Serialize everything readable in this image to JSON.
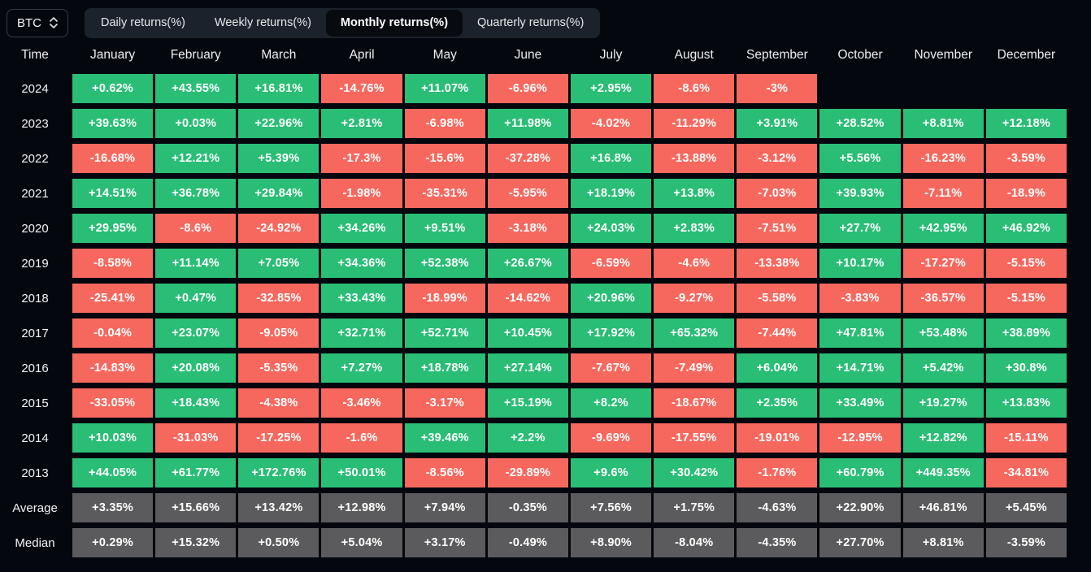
{
  "controls": {
    "symbol_selector": {
      "value": "BTC"
    },
    "tabs": [
      {
        "label": "Daily returns(%)",
        "active": false
      },
      {
        "label": "Weekly returns(%)",
        "active": false
      },
      {
        "label": "Monthly returns(%)",
        "active": true
      },
      {
        "label": "Quarterly returns(%)",
        "active": false
      }
    ]
  },
  "table": {
    "time_header": "Time",
    "months": [
      "January",
      "February",
      "March",
      "April",
      "May",
      "June",
      "July",
      "August",
      "September",
      "October",
      "November",
      "December"
    ],
    "rows": [
      {
        "label": "2024",
        "type": "year",
        "values": [
          "+0.62%",
          "+43.55%",
          "+16.81%",
          "-14.76%",
          "+11.07%",
          "-6.96%",
          "+2.95%",
          "-8.6%",
          "-3%",
          "",
          "",
          ""
        ]
      },
      {
        "label": "2023",
        "type": "year",
        "values": [
          "+39.63%",
          "+0.03%",
          "+22.96%",
          "+2.81%",
          "-6.98%",
          "+11.98%",
          "-4.02%",
          "-11.29%",
          "+3.91%",
          "+28.52%",
          "+8.81%",
          "+12.18%"
        ]
      },
      {
        "label": "2022",
        "type": "year",
        "values": [
          "-16.68%",
          "+12.21%",
          "+5.39%",
          "-17.3%",
          "-15.6%",
          "-37.28%",
          "+16.8%",
          "-13.88%",
          "-3.12%",
          "+5.56%",
          "-16.23%",
          "-3.59%"
        ]
      },
      {
        "label": "2021",
        "type": "year",
        "values": [
          "+14.51%",
          "+36.78%",
          "+29.84%",
          "-1.98%",
          "-35.31%",
          "-5.95%",
          "+18.19%",
          "+13.8%",
          "-7.03%",
          "+39.93%",
          "-7.11%",
          "-18.9%"
        ]
      },
      {
        "label": "2020",
        "type": "year",
        "values": [
          "+29.95%",
          "-8.6%",
          "-24.92%",
          "+34.26%",
          "+9.51%",
          "-3.18%",
          "+24.03%",
          "+2.83%",
          "-7.51%",
          "+27.7%",
          "+42.95%",
          "+46.92%"
        ]
      },
      {
        "label": "2019",
        "type": "year",
        "values": [
          "-8.58%",
          "+11.14%",
          "+7.05%",
          "+34.36%",
          "+52.38%",
          "+26.67%",
          "-6.59%",
          "-4.6%",
          "-13.38%",
          "+10.17%",
          "-17.27%",
          "-5.15%"
        ]
      },
      {
        "label": "2018",
        "type": "year",
        "values": [
          "-25.41%",
          "+0.47%",
          "-32.85%",
          "+33.43%",
          "-18.99%",
          "-14.62%",
          "+20.96%",
          "-9.27%",
          "-5.58%",
          "-3.83%",
          "-36.57%",
          "-5.15%"
        ]
      },
      {
        "label": "2017",
        "type": "year",
        "values": [
          "-0.04%",
          "+23.07%",
          "-9.05%",
          "+32.71%",
          "+52.71%",
          "+10.45%",
          "+17.92%",
          "+65.32%",
          "-7.44%",
          "+47.81%",
          "+53.48%",
          "+38.89%"
        ]
      },
      {
        "label": "2016",
        "type": "year",
        "values": [
          "-14.83%",
          "+20.08%",
          "-5.35%",
          "+7.27%",
          "+18.78%",
          "+27.14%",
          "-7.67%",
          "-7.49%",
          "+6.04%",
          "+14.71%",
          "+5.42%",
          "+30.8%"
        ]
      },
      {
        "label": "2015",
        "type": "year",
        "values": [
          "-33.05%",
          "+18.43%",
          "-4.38%",
          "-3.46%",
          "-3.17%",
          "+15.19%",
          "+8.2%",
          "-18.67%",
          "+2.35%",
          "+33.49%",
          "+19.27%",
          "+13.83%"
        ]
      },
      {
        "label": "2014",
        "type": "year",
        "values": [
          "+10.03%",
          "-31.03%",
          "-17.25%",
          "-1.6%",
          "+39.46%",
          "+2.2%",
          "-9.69%",
          "-17.55%",
          "-19.01%",
          "-12.95%",
          "+12.82%",
          "-15.11%"
        ]
      },
      {
        "label": "2013",
        "type": "year",
        "values": [
          "+44.05%",
          "+61.77%",
          "+172.76%",
          "+50.01%",
          "-8.56%",
          "-29.89%",
          "+9.6%",
          "+30.42%",
          "-1.76%",
          "+60.79%",
          "+449.35%",
          "-34.81%"
        ]
      },
      {
        "label": "Average",
        "type": "summary",
        "values": [
          "+3.35%",
          "+15.66%",
          "+13.42%",
          "+12.98%",
          "+7.94%",
          "-0.35%",
          "+7.56%",
          "+1.75%",
          "-4.63%",
          "+22.90%",
          "+46.81%",
          "+5.45%"
        ]
      },
      {
        "label": "Median",
        "type": "summary",
        "values": [
          "+0.29%",
          "+15.32%",
          "+0.50%",
          "+5.04%",
          "+3.17%",
          "-0.49%",
          "+8.90%",
          "-8.04%",
          "-4.35%",
          "+27.70%",
          "+8.81%",
          "-3.59%"
        ]
      }
    ]
  },
  "colors": {
    "background": "#04070e",
    "positive": "#2abd76",
    "negative": "#f6685e",
    "summary": "#5b5b5d",
    "tab_bar": "#1c222b",
    "tab_active": "#070a0f"
  }
}
